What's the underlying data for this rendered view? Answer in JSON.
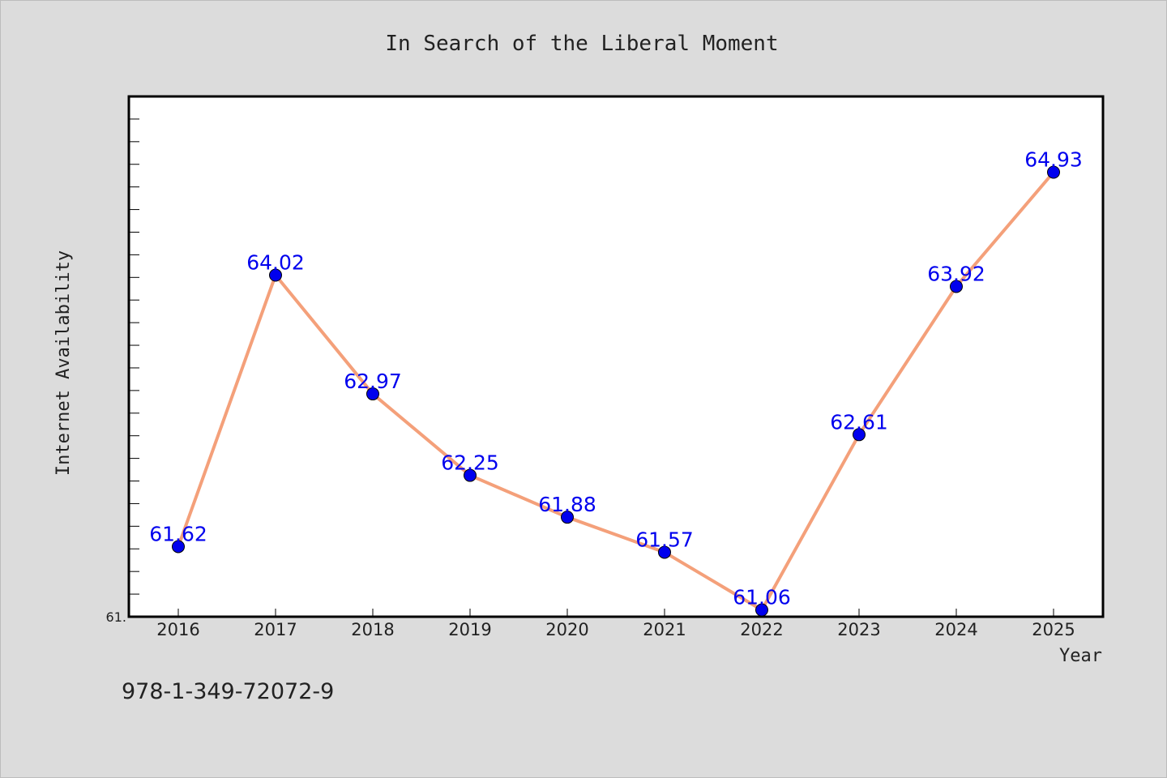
{
  "chart_data": {
    "type": "line",
    "title": "In Search of the Liberal Moment",
    "xlabel": "Year",
    "ylabel": "Internet Availability",
    "categories": [
      "2016",
      "2017",
      "2018",
      "2019",
      "2020",
      "2021",
      "2022",
      "2023",
      "2024",
      "2025"
    ],
    "series": [
      {
        "values": [
          61.62,
          64.02,
          62.97,
          62.25,
          61.88,
          61.57,
          61.06,
          62.61,
          63.92,
          64.93
        ],
        "labels": [
          "61.62",
          "64.02",
          "62.97",
          "62.25",
          "61.88",
          "61.57",
          "61.06",
          "62.61",
          "63.92",
          "64.93"
        ]
      }
    ],
    "ylim": [
      61.0,
      65.6
    ],
    "ytick_labels": [
      {
        "value": 61.0,
        "label": "61."
      }
    ],
    "legend": "none",
    "grid": false,
    "colors": {
      "line": "#f4a07a",
      "marker": "#0000ee",
      "label": "#0000ee",
      "background": "#dcdcdc",
      "plot_background": "#ffffff"
    }
  },
  "footnote": "978-1-349-72072-9"
}
